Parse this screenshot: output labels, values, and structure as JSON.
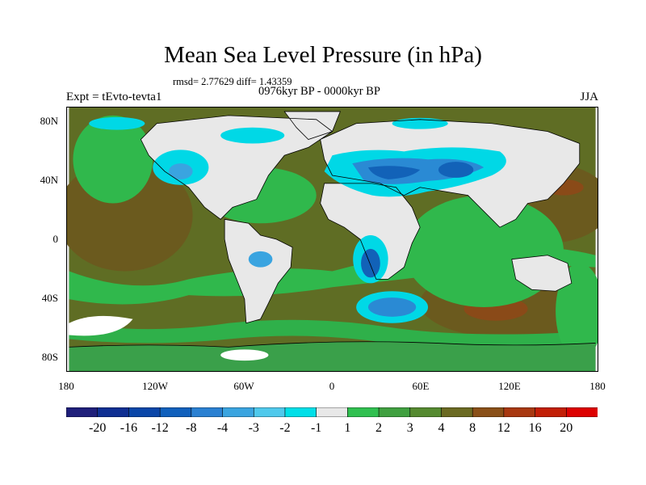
{
  "title": "Mean Sea Level Pressure (in hPa)",
  "stats": "rmsd= 2.77629 diff= 1.43359",
  "left_label": "Expt = tEvto-tevta1",
  "center_label": "0976kyr BP - 0000kyr BP",
  "right_label": "JJA",
  "x_ticks": [
    "180",
    "120W",
    "60W",
    "0",
    "60E",
    "120E",
    "180"
  ],
  "y_ticks": [
    "80N",
    "40N",
    "0",
    "40S",
    "80S"
  ],
  "colorbar": {
    "labels": [
      "-20",
      "-16",
      "-12",
      "-8",
      "-4",
      "-3",
      "-2",
      "-1",
      "1",
      "2",
      "3",
      "4",
      "8",
      "12",
      "16",
      "20"
    ],
    "colors": [
      "#1f1f7a",
      "#0f2f92",
      "#0a46a8",
      "#1060bc",
      "#2a80d2",
      "#3aa4e0",
      "#4fc9ec",
      "#00dfe8",
      "#e8e8e8",
      "#30c050",
      "#40a040",
      "#558a30",
      "#6b6a22",
      "#8a5018",
      "#a83810",
      "#c21e06",
      "#dd0000"
    ]
  },
  "map": {
    "land_color": "#e8e8e8",
    "ocean_color": "#5f6d24",
    "coastline_color": "#000000"
  }
}
